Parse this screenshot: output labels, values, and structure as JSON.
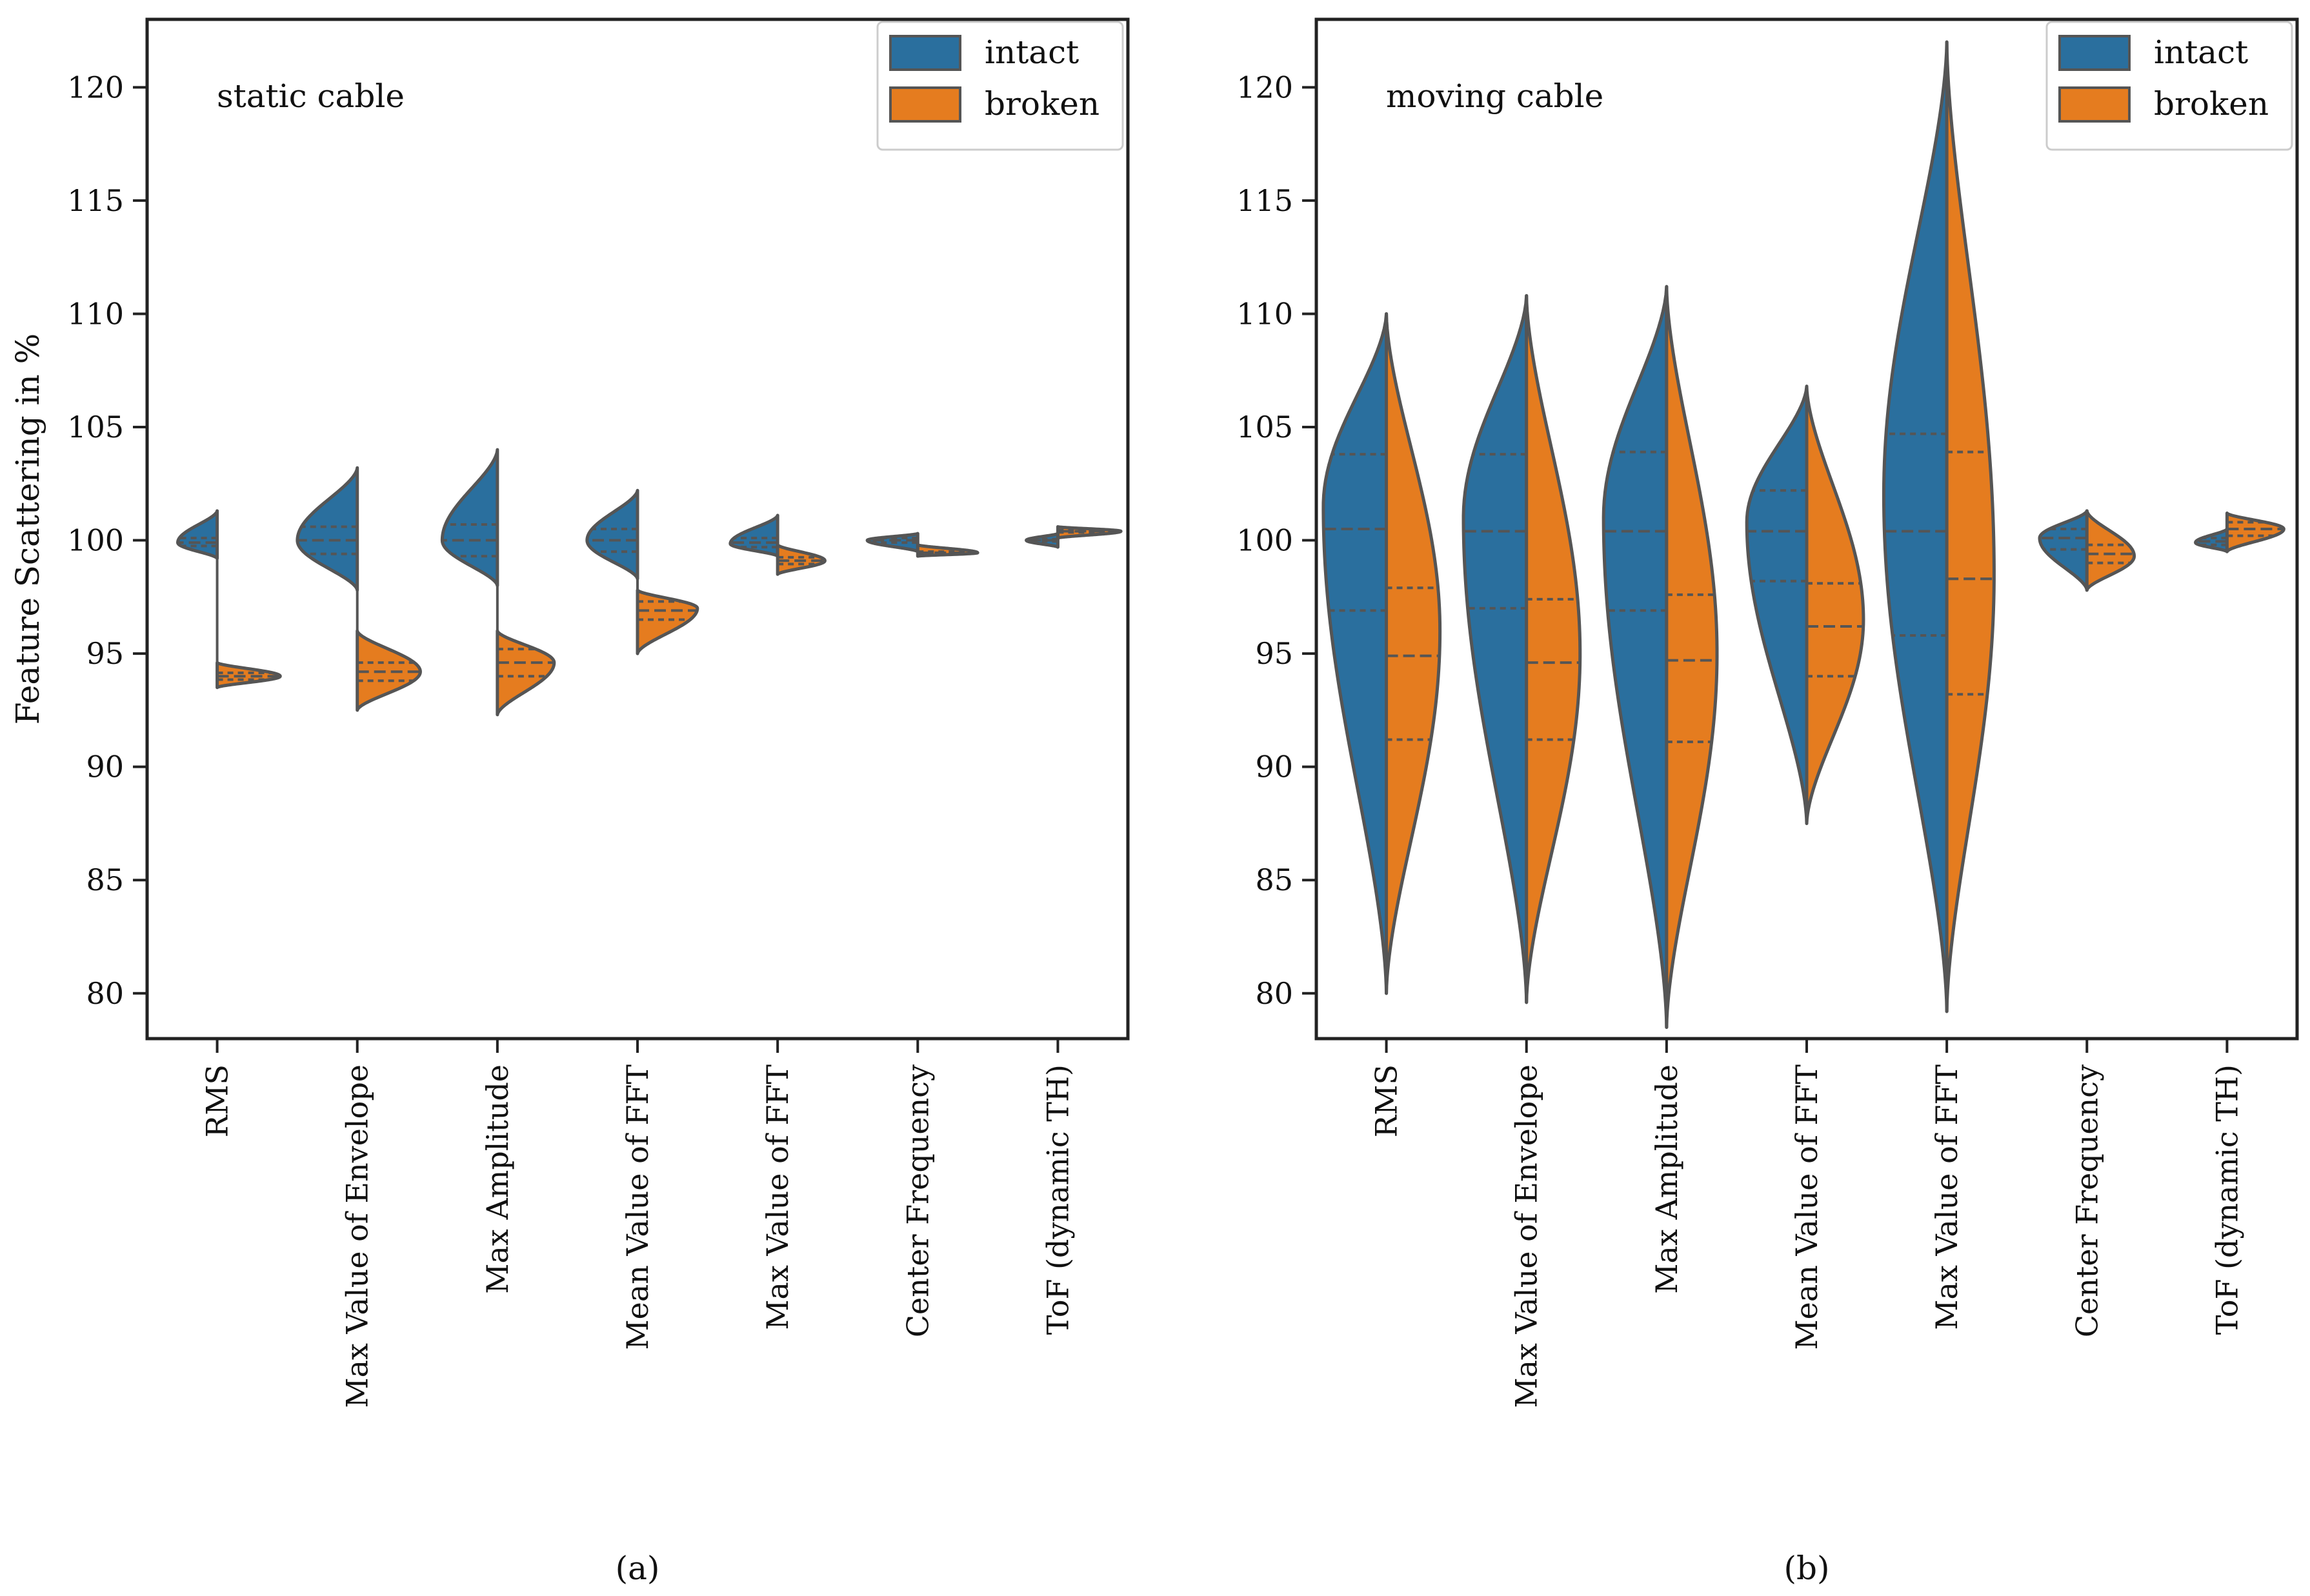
{
  "chart_data": [
    {
      "type": "violin",
      "title": "static cable",
      "caption": "(a)",
      "xlabel": "",
      "ylabel": "Feature Scattering in %",
      "ylim": [
        78,
        123
      ],
      "yticks": [
        80,
        85,
        90,
        95,
        100,
        105,
        110,
        115,
        120
      ],
      "categories": [
        "RMS",
        "Max Value of Envelope",
        "Max Amplitude",
        "Mean Value of FFT",
        "Max Value of FFT",
        "Center Frequency",
        "ToF (dynamic TH)"
      ],
      "legend": {
        "position": "top-right",
        "entries": [
          "intact",
          "broken"
        ]
      },
      "series": [
        {
          "name": "intact",
          "color": "#2a6f9e",
          "groups": [
            {
              "min": 99.2,
              "max": 101.3,
              "peak": 99.9,
              "width": 0.25,
              "q1": 99.75,
              "median": 99.9,
              "q3": 100.1
            },
            {
              "min": 97.8,
              "max": 103.2,
              "peak": 100.0,
              "width": 0.38,
              "q1": 99.4,
              "median": 100.0,
              "q3": 100.6
            },
            {
              "min": 98.0,
              "max": 104.0,
              "peak": 100.0,
              "width": 0.35,
              "q1": 99.3,
              "median": 100.0,
              "q3": 100.7
            },
            {
              "min": 98.3,
              "max": 102.2,
              "peak": 100.0,
              "width": 0.32,
              "q1": 99.5,
              "median": 100.0,
              "q3": 100.5
            },
            {
              "min": 99.3,
              "max": 101.1,
              "peak": 99.85,
              "width": 0.3,
              "q1": 99.7,
              "median": 99.9,
              "q3": 100.1
            },
            {
              "min": 99.5,
              "max": 100.3,
              "peak": 100.0,
              "width": 0.32,
              "q1": 99.9,
              "median": 100.0,
              "q3": 100.1
            },
            {
              "min": 99.7,
              "max": 100.3,
              "peak": 100.0,
              "width": 0.2,
              "q1": 99.95,
              "median": 100.0,
              "q3": 100.05
            }
          ]
        },
        {
          "name": "broken",
          "color": "#e57c1f",
          "groups": [
            {
              "min": 93.5,
              "max": 94.6,
              "peak": 94.0,
              "width": 0.4,
              "q1": 93.85,
              "median": 94.0,
              "q3": 94.15
            },
            {
              "min": 92.5,
              "max": 96.0,
              "peak": 94.2,
              "width": 0.4,
              "q1": 93.8,
              "median": 94.2,
              "q3": 94.6
            },
            {
              "min": 92.3,
              "max": 96.0,
              "peak": 94.6,
              "width": 0.36,
              "q1": 94.0,
              "median": 94.6,
              "q3": 95.2
            },
            {
              "min": 95.0,
              "max": 97.8,
              "peak": 97.0,
              "width": 0.38,
              "q1": 96.5,
              "median": 96.9,
              "q3": 97.3
            },
            {
              "min": 98.5,
              "max": 99.8,
              "peak": 99.1,
              "width": 0.3,
              "q1": 98.95,
              "median": 99.1,
              "q3": 99.25
            },
            {
              "min": 99.3,
              "max": 99.8,
              "peak": 99.45,
              "width": 0.38,
              "q1": 99.4,
              "median": 99.45,
              "q3": 99.5
            },
            {
              "min": 100.1,
              "max": 100.6,
              "peak": 100.4,
              "width": 0.4,
              "q1": 100.35,
              "median": 100.4,
              "q3": 100.45
            }
          ]
        }
      ]
    },
    {
      "type": "violin",
      "title": "moving cable",
      "caption": "(b)",
      "xlabel": "",
      "ylabel": "",
      "ylim": [
        78,
        123
      ],
      "yticks": [
        80,
        85,
        90,
        95,
        100,
        105,
        110,
        115,
        120
      ],
      "categories": [
        "RMS",
        "Max Value of Envelope",
        "Max Amplitude",
        "Mean Value of FFT",
        "Max Value of FFT",
        "Center Frequency",
        "ToF (dynamic TH)"
      ],
      "legend": {
        "position": "top-right",
        "entries": [
          "intact",
          "broken"
        ]
      },
      "series": [
        {
          "name": "intact",
          "color": "#2a6f9e",
          "groups": [
            {
              "min": 80.0,
              "max": 110.0,
              "peak": 101.5,
              "width": 0.4,
              "q1": 96.9,
              "median": 100.5,
              "q3": 103.8
            },
            {
              "min": 79.6,
              "max": 110.8,
              "peak": 101.0,
              "width": 0.4,
              "q1": 97.0,
              "median": 100.4,
              "q3": 103.8
            },
            {
              "min": 78.5,
              "max": 111.2,
              "peak": 101.0,
              "width": 0.4,
              "q1": 96.9,
              "median": 100.4,
              "q3": 103.9
            },
            {
              "min": 87.5,
              "max": 106.8,
              "peak": 100.8,
              "width": 0.38,
              "q1": 98.2,
              "median": 100.4,
              "q3": 102.2
            },
            {
              "min": 79.2,
              "max": 122.0,
              "peak": 102.0,
              "width": 0.4,
              "q1": 95.8,
              "median": 100.4,
              "q3": 104.7
            },
            {
              "min": 97.8,
              "max": 101.3,
              "peak": 100.1,
              "width": 0.3,
              "q1": 99.6,
              "median": 100.1,
              "q3": 100.5
            },
            {
              "min": 99.5,
              "max": 100.5,
              "peak": 99.9,
              "width": 0.2,
              "q1": 99.8,
              "median": 99.95,
              "q3": 100.1
            }
          ]
        },
        {
          "name": "broken",
          "color": "#e57c1f",
          "groups": [
            {
              "min": 80.0,
              "max": 110.0,
              "peak": 96.0,
              "width": 0.34,
              "q1": 91.2,
              "median": 94.9,
              "q3": 97.9
            },
            {
              "min": 79.6,
              "max": 110.8,
              "peak": 95.0,
              "width": 0.34,
              "q1": 91.2,
              "median": 94.6,
              "q3": 97.4
            },
            {
              "min": 78.5,
              "max": 111.2,
              "peak": 95.0,
              "width": 0.32,
              "q1": 91.1,
              "median": 94.7,
              "q3": 97.6
            },
            {
              "min": 87.5,
              "max": 106.8,
              "peak": 96.5,
              "width": 0.36,
              "q1": 94.0,
              "median": 96.2,
              "q3": 98.1
            },
            {
              "min": 79.2,
              "max": 122.0,
              "peak": 98.5,
              "width": 0.3,
              "q1": 93.2,
              "median": 98.3,
              "q3": 103.9
            },
            {
              "min": 97.8,
              "max": 101.3,
              "peak": 99.3,
              "width": 0.3,
              "q1": 99.0,
              "median": 99.4,
              "q3": 99.8
            },
            {
              "min": 99.5,
              "max": 101.2,
              "peak": 100.5,
              "width": 0.36,
              "q1": 100.2,
              "median": 100.5,
              "q3": 100.8
            }
          ]
        }
      ]
    }
  ]
}
